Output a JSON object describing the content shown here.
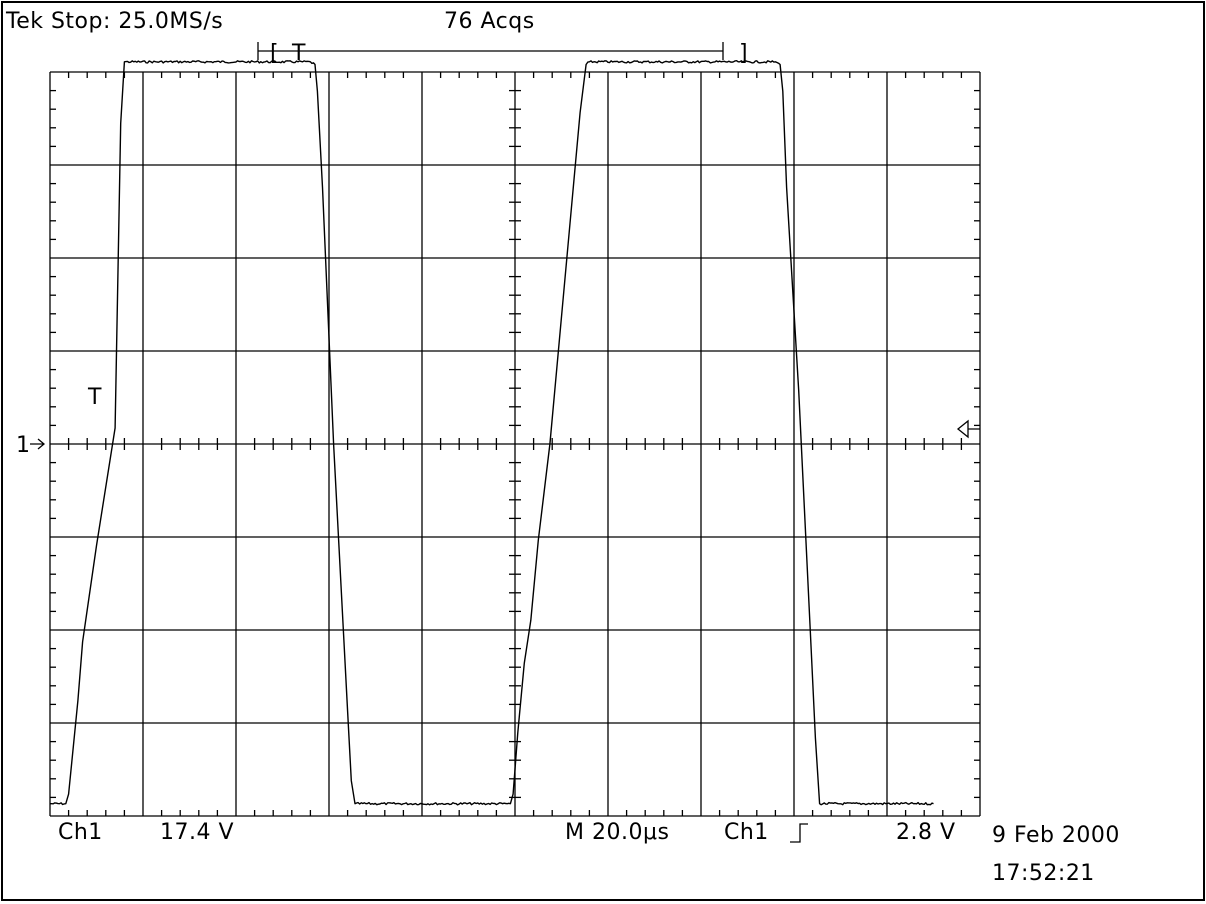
{
  "header": {
    "status": "Tek Stop: 25.0MS/s",
    "acquisitions": "76 Acqs",
    "record_bracket_left": "[",
    "record_bracket_right": "]",
    "trigger_marker": "T"
  },
  "graticule": {
    "trigger_point_label": "T",
    "channel_ground_marker": "1",
    "trigger_level_arrow": "left-arrow-icon"
  },
  "footer": {
    "channel": "Ch1",
    "volts_per_div": "17.4 V",
    "timebase": "M 20.0μs",
    "trigger_source": "Ch1",
    "trigger_slope": "rising-edge-icon",
    "trigger_level": "2.8 V",
    "date": "9 Feb 2000",
    "time": "17:52:21"
  },
  "chart_data": {
    "type": "line",
    "title": "",
    "xlabel": "",
    "ylabel": "",
    "units": {
      "x": "μs",
      "y": "V"
    },
    "xlim": [
      0,
      200
    ],
    "ylim": [
      -69.6,
      69.6
    ],
    "grid": true,
    "series": [
      {
        "x": [
          0,
          3.4,
          4.0,
          6.0,
          7.0,
          10.0,
          14.0,
          15.2,
          16.0,
          56.0,
          57.0,
          57.5,
          58.6,
          61.0,
          64.0,
          64.8,
          65.6,
          99.0,
          99.6,
          100.6,
          102.0,
          103.4,
          105.0,
          107.5,
          114.0,
          115.3,
          116.0,
          156.0,
          157.0,
          157.6,
          158.4,
          161.0,
          163.5,
          164.6,
          165.5,
          190.0
        ],
        "y": [
          -67.3,
          -67.3,
          -65.5,
          -48.0,
          -37.0,
          -19.0,
          3.0,
          60.0,
          71.5,
          71.5,
          71.0,
          66.0,
          48.0,
          0.0,
          -50.0,
          -63.0,
          -67.3,
          -67.3,
          -65.5,
          -54.0,
          -41.0,
          -33.0,
          -18.0,
          0.0,
          62.0,
          71.0,
          71.5,
          71.5,
          71.0,
          66.0,
          48.0,
          10.0,
          -35.0,
          -55.0,
          -67.3,
          -67.3
        ]
      }
    ]
  }
}
